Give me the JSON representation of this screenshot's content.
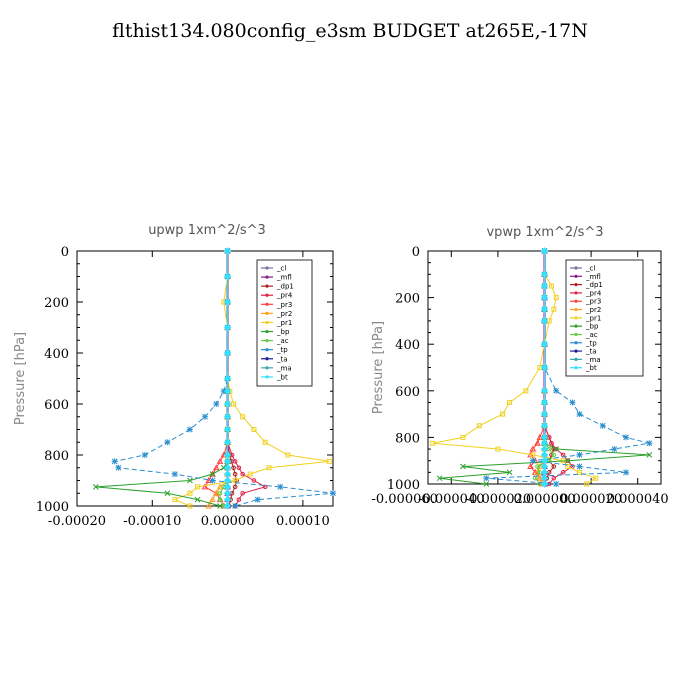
{
  "title": "flthist134.080config_e3sm  BUDGET at265E,-17N",
  "chart_data": [
    {
      "type": "line",
      "title": "upwp   1xm^2/s^3",
      "ylabel": "Pressure [hPa]",
      "xlim": [
        -0.0002,
        0.00014
      ],
      "ylim": [
        1000,
        0
      ],
      "xticks": [
        -0.0002,
        -0.0001,
        0.0,
        0.0001
      ],
      "xtick_labels": [
        "-0.00020",
        "-0.00010",
        "0.00000",
        "0.00010"
      ],
      "yticks": [
        0,
        200,
        400,
        600,
        800,
        1000
      ],
      "y": [
        0,
        100,
        200,
        300,
        400,
        500,
        550,
        600,
        650,
        700,
        750,
        800,
        825,
        850,
        875,
        900,
        925,
        950,
        975,
        1000
      ],
      "legend_position": "top-right",
      "series": [
        {
          "name": "_cl",
          "color": "#7f6fa0",
          "values": [
            0,
            0,
            0,
            0,
            0,
            0,
            0,
            0,
            0,
            0,
            0,
            0,
            0,
            0,
            0,
            0,
            0,
            0,
            0,
            0
          ]
        },
        {
          "name": "_mfl",
          "color": "#8b1a8b",
          "values": [
            0,
            0,
            0,
            0,
            0,
            0,
            0,
            0,
            0,
            0,
            0,
            0,
            0,
            0,
            0,
            0,
            0,
            0,
            0,
            0
          ]
        },
        {
          "name": "_dp1",
          "color": "#b22222",
          "values": [
            0,
            0,
            0,
            0,
            0,
            0,
            0,
            0,
            0,
            0,
            0,
            3e-06,
            5e-06,
            8e-06,
            1e-05,
            1.2e-05,
            1e-05,
            6e-06,
            4e-06,
            2e-06
          ]
        },
        {
          "name": "_pr4",
          "color": "#e0204a",
          "values": [
            0,
            0,
            0,
            0,
            0,
            0,
            0,
            0,
            0,
            0,
            0,
            6e-06,
            1e-05,
            1.5e-05,
            2e-05,
            3.5e-05,
            5e-05,
            2e-05,
            1.5e-05,
            1e-05
          ]
        },
        {
          "name": "_pr3",
          "color": "#ff4040",
          "values": [
            0,
            0,
            0,
            0,
            0,
            0,
            0,
            0,
            0,
            0,
            0,
            -5e-06,
            -1e-05,
            -1.5e-05,
            -2e-05,
            -2.5e-05,
            -3e-05,
            -1.5e-05,
            -1e-05,
            -5e-06
          ]
        },
        {
          "name": "_pr2",
          "color": "#ffa020",
          "values": [
            0,
            0,
            0,
            0,
            0,
            0,
            0,
            0,
            0,
            0,
            0,
            0,
            0,
            0,
            0,
            0,
            -1e-05,
            -1.5e-05,
            -2e-05,
            -2.5e-05
          ]
        },
        {
          "name": "_pr1",
          "color": "#f0d020",
          "values": [
            0,
            0,
            -5e-06,
            0,
            0,
            0,
            3e-06,
            8e-06,
            2e-05,
            3.5e-05,
            5e-05,
            8e-05,
            0.000135,
            5.5e-05,
            3e-05,
            1e-05,
            -4e-05,
            -5e-05,
            -7e-05,
            -5e-05
          ]
        },
        {
          "name": "_bp",
          "color": "#2ca02c",
          "values": [
            0,
            0,
            0,
            0,
            0,
            0,
            0,
            0,
            0,
            0,
            0,
            0,
            0,
            -5e-06,
            -2e-05,
            -5e-05,
            -0.000175,
            -8e-05,
            -4e-05,
            -1e-05
          ]
        },
        {
          "name": "_ac",
          "color": "#66cc44",
          "values": [
            0,
            0,
            0,
            0,
            0,
            0,
            0,
            0,
            0,
            0,
            0,
            0,
            0,
            0,
            0,
            0,
            -5e-06,
            -1e-05,
            -1e-05,
            -5e-06
          ]
        },
        {
          "name": "_tp",
          "color": "#2a8ed0",
          "values": [
            0,
            0,
            0,
            0,
            0,
            0,
            -5e-06,
            -1.5e-05,
            -3e-05,
            -5e-05,
            -8e-05,
            -0.00011,
            -0.00015,
            -0.000145,
            -7e-05,
            -2e-05,
            7e-05,
            0.00014,
            4e-05,
            1e-05
          ]
        },
        {
          "name": "_ta",
          "color": "#1a1a9a",
          "values": [
            0,
            0,
            0,
            0,
            0,
            0,
            0,
            0,
            0,
            0,
            0,
            0,
            0,
            0,
            0,
            0,
            0,
            0,
            0,
            0
          ]
        },
        {
          "name": "_ma",
          "color": "#3aa6b0",
          "values": [
            0,
            0,
            0,
            0,
            0,
            0,
            0,
            0,
            0,
            0,
            0,
            0,
            0,
            0,
            0,
            0,
            0,
            0,
            0,
            0
          ]
        },
        {
          "name": "_bt",
          "color": "#33e0ff",
          "values": [
            0,
            0,
            0,
            0,
            0,
            0,
            0,
            0,
            0,
            0,
            0,
            0,
            0,
            0,
            0,
            0,
            0,
            0,
            0,
            0
          ]
        }
      ]
    },
    {
      "type": "line",
      "title": "vpwp   1xm^2/s^3",
      "ylabel": "Pressure [hPa]",
      "xlim": [
        -5e-05,
        5e-05
      ],
      "ylim": [
        1000,
        0
      ],
      "xticks": [
        -6e-05,
        -4e-05,
        -2e-05,
        0.0,
        2e-05,
        4e-05
      ],
      "xtick_labels": [
        "-0.000060",
        "-0.000040",
        "-0.000020",
        "0.000000",
        "0.000020",
        "0.000040"
      ],
      "yticks": [
        0,
        200,
        400,
        600,
        800,
        1000
      ],
      "y": [
        0,
        100,
        150,
        200,
        250,
        300,
        400,
        500,
        600,
        650,
        700,
        750,
        800,
        825,
        850,
        875,
        900,
        925,
        950,
        975,
        1000
      ],
      "legend_position": "top-right",
      "series": [
        {
          "name": "_cl",
          "color": "#7f6fa0",
          "values": [
            0,
            0,
            0,
            0,
            0,
            0,
            0,
            0,
            0,
            0,
            0,
            0,
            0,
            0,
            0,
            0,
            0,
            0,
            0,
            0,
            0
          ]
        },
        {
          "name": "_mfl",
          "color": "#8b1a8b",
          "values": [
            0,
            0,
            0,
            0,
            0,
            0,
            0,
            0,
            0,
            0,
            0,
            0,
            0,
            0,
            0,
            0,
            0,
            0,
            0,
            0,
            0
          ]
        },
        {
          "name": "_dp1",
          "color": "#b22222",
          "values": [
            0,
            0,
            0,
            0,
            0,
            0,
            0,
            0,
            0,
            0,
            0,
            0,
            2e-06,
            3e-06,
            4e-06,
            3e-06,
            2e-06,
            4e-06,
            2e-06,
            1e-06,
            0
          ]
        },
        {
          "name": "_pr4",
          "color": "#e0204a",
          "values": [
            0,
            0,
            0,
            0,
            0,
            0,
            0,
            0,
            0,
            0,
            0,
            0,
            2e-06,
            3e-06,
            5e-06,
            8e-06,
            1e-05,
            1.2e-05,
            8e-06,
            4e-06,
            2e-06
          ]
        },
        {
          "name": "_pr3",
          "color": "#ff4040",
          "values": [
            0,
            0,
            0,
            0,
            0,
            0,
            0,
            0,
            0,
            0,
            0,
            0,
            -2e-06,
            -3e-06,
            -5e-06,
            -6e-06,
            -4e-06,
            -6e-06,
            -4e-06,
            -2e-06,
            -1e-06
          ]
        },
        {
          "name": "_pr2",
          "color": "#ffa020",
          "values": [
            0,
            0,
            0,
            0,
            0,
            0,
            0,
            0,
            0,
            0,
            0,
            0,
            0,
            0,
            0,
            0,
            0,
            -2e-06,
            -3e-06,
            -2e-06,
            -1e-06
          ]
        },
        {
          "name": "_pr1",
          "color": "#f0d020",
          "values": [
            0,
            0,
            3e-06,
            5e-06,
            4e-06,
            2e-06,
            0,
            -2e-06,
            -8e-06,
            -1.5e-05,
            -1.8e-05,
            -2.8e-05,
            -3.5e-05,
            -4.8e-05,
            -2e-05,
            -5e-06,
            8e-06,
            1e-05,
            1.5e-05,
            2.2e-05,
            1.8e-05
          ]
        },
        {
          "name": "_bp",
          "color": "#2ca02c",
          "values": [
            0,
            0,
            0,
            0,
            0,
            0,
            0,
            0,
            0,
            0,
            0,
            0,
            0,
            0,
            5e-06,
            4.5e-05,
            1e-05,
            -3.5e-05,
            -1.5e-05,
            -4.5e-05,
            -2.5e-05
          ]
        },
        {
          "name": "_ac",
          "color": "#66cc44",
          "values": [
            0,
            0,
            0,
            0,
            0,
            0,
            0,
            0,
            0,
            0,
            0,
            0,
            0,
            0,
            2e-06,
            4e-06,
            2e-06,
            -3e-06,
            -2e-06,
            -4e-06,
            -2e-06
          ]
        },
        {
          "name": "_tp",
          "color": "#2a8ed0",
          "values": [
            0,
            0,
            0,
            0,
            0,
            0,
            0,
            0,
            5e-06,
            1.2e-05,
            1.5e-05,
            2.5e-05,
            3.5e-05,
            4.5e-05,
            3e-05,
            1.5e-05,
            -5e-06,
            1.5e-05,
            3.5e-05,
            -2.5e-05,
            5e-06
          ]
        },
        {
          "name": "_ta",
          "color": "#1a1a9a",
          "values": [
            0,
            0,
            0,
            0,
            0,
            0,
            0,
            0,
            0,
            0,
            0,
            0,
            0,
            0,
            0,
            0,
            0,
            0,
            0,
            0,
            0
          ]
        },
        {
          "name": "_ma",
          "color": "#3aa6b0",
          "values": [
            0,
            0,
            0,
            0,
            0,
            0,
            0,
            0,
            0,
            0,
            0,
            0,
            0,
            0,
            0,
            0,
            0,
            0,
            0,
            0,
            0
          ]
        },
        {
          "name": "_bt",
          "color": "#33e0ff",
          "values": [
            0,
            0,
            0,
            0,
            0,
            0,
            0,
            0,
            0,
            0,
            0,
            0,
            0,
            0,
            0,
            0,
            0,
            0,
            0,
            0,
            0
          ]
        }
      ]
    }
  ]
}
